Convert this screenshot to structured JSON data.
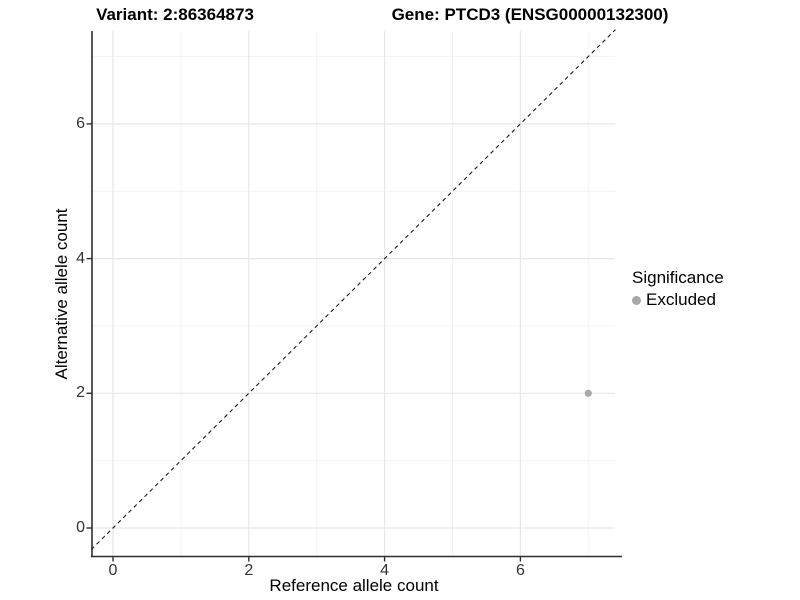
{
  "titles": {
    "variant": "Variant: 2:86364873",
    "gene": "Gene: PTCD3 (ENSG00000132300)"
  },
  "axes": {
    "x": {
      "label": "Reference allele count",
      "tick_labels": [
        "0",
        "2",
        "4",
        "6"
      ]
    },
    "y": {
      "label": "Alternative allele count",
      "tick_labels": [
        "0",
        "2",
        "4",
        "6"
      ]
    }
  },
  "legend": {
    "title": "Significance",
    "items": [
      {
        "label": "Excluded",
        "color": "#a8a8a8"
      }
    ]
  },
  "colors": {
    "point": "#a8a8a8",
    "axis_line": "#2e2e2e",
    "tick_text": "#333333",
    "grid_major": "#e7e7e7",
    "grid_minor": "#f2f2f2",
    "reference_line": "#1a1a1a",
    "background": "#ffffff"
  },
  "chart_data": {
    "type": "scatter",
    "title": "Variant: 2:86364873 | Gene: PTCD3 (ENSG00000132300)",
    "xlabel": "Reference allele count",
    "ylabel": "Alternative allele count",
    "xlim": [
      -0.32,
      7.4
    ],
    "ylim": [
      -0.42,
      7.4
    ],
    "x_major_ticks": [
      0,
      2,
      4,
      6
    ],
    "x_minor_gridlines": [
      1,
      3,
      5,
      7
    ],
    "y_major_ticks": [
      0,
      2,
      4,
      6
    ],
    "y_minor_gridlines": [
      1,
      3,
      5,
      7
    ],
    "grid": true,
    "legend_position": "right",
    "reference_line": {
      "type": "identity",
      "style": "dashed"
    },
    "series": [
      {
        "name": "Excluded",
        "color": "#a8a8a8",
        "points": [
          {
            "x": 7,
            "y": 2
          }
        ]
      }
    ]
  }
}
